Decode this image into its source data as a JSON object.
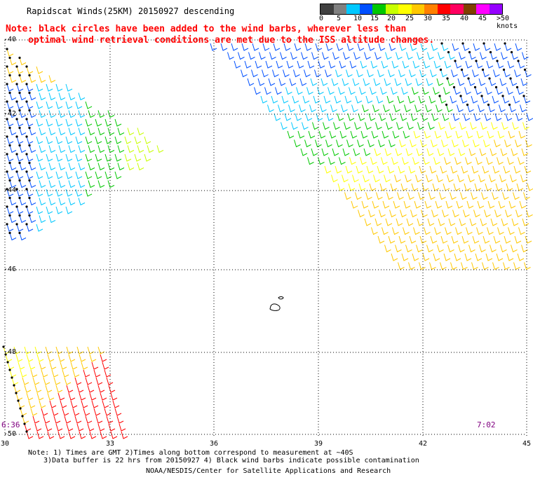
{
  "title": "Rapidscat Winds(25KM) 20150927 descending",
  "note": {
    "line1": "Note: black circles have been added to the wind barbs, wherever less than",
    "line2": "optimal wind retrieval conditions are met due to the ISS altitude changes."
  },
  "scale": {
    "colors": [
      "#404040",
      "#808080",
      "#00c8ff",
      "#0050ff",
      "#00c800",
      "#c8ff00",
      "#ffff00",
      "#ffc800",
      "#ff8000",
      "#ff0000",
      "#ff0060",
      "#804000",
      "#ff00ff",
      "#9600ff"
    ],
    "labels": [
      "0",
      "5",
      "10",
      "15",
      "20",
      "25",
      "30",
      "35",
      "40",
      "45",
      ">50 knots"
    ]
  },
  "axes": {
    "lat_labels": [
      "-40",
      "-42",
      "-44",
      "-46",
      "-48",
      "-50"
    ],
    "lon_labels": [
      "30",
      "33",
      "36",
      "39",
      "42",
      "45"
    ]
  },
  "times": {
    "left": "6:36",
    "right": "7:02"
  },
  "footer": {
    "line1": "Note: 1) Times are GMT 2)Times along bottom correspond to measurement at ~40S",
    "line2": "3)Data buffer is 22 hrs from 20150927 4) Black wind barbs indicate possible contamination",
    "line3": "NOAA/NESDIS/Center for Satellite Applications and Research"
  }
}
